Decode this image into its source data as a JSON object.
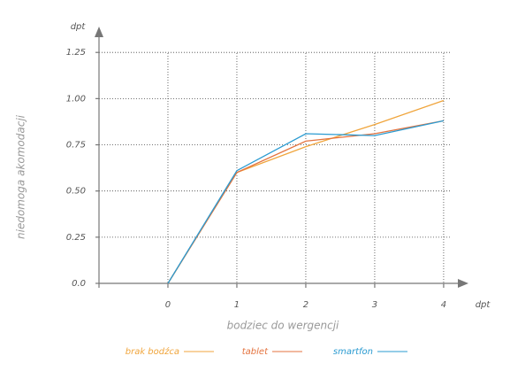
{
  "chart_data": {
    "type": "line",
    "x_label": "bodziec do wergencji",
    "y_label": "niedomoga akomodacji",
    "x_unit": "dpt",
    "y_unit": "dpt",
    "x": [
      0,
      1,
      2,
      3,
      4
    ],
    "series": [
      {
        "name": "brak bodźca",
        "color": "#f0a53c",
        "values": [
          0,
          0.6,
          0.74,
          0.86,
          0.99
        ]
      },
      {
        "name": "tablet",
        "color": "#e4733f",
        "values": [
          0,
          0.6,
          0.77,
          0.81,
          0.88
        ]
      },
      {
        "name": "smartfon",
        "color": "#2b9bd1",
        "values": [
          0,
          0.61,
          0.81,
          0.8,
          0.88
        ]
      }
    ],
    "xlim": [
      -1,
      4.36
    ],
    "ylim": [
      0,
      1.39
    ],
    "xticks": [
      0,
      1,
      2,
      3,
      4
    ],
    "yticks": [
      {
        "value": 0,
        "label": "0.0"
      },
      0.25,
      {
        "value": 0.5,
        "label": "0.50"
      },
      0.75,
      {
        "value": 1,
        "label": "1.00"
      },
      1.25
    ],
    "grid": true
  }
}
